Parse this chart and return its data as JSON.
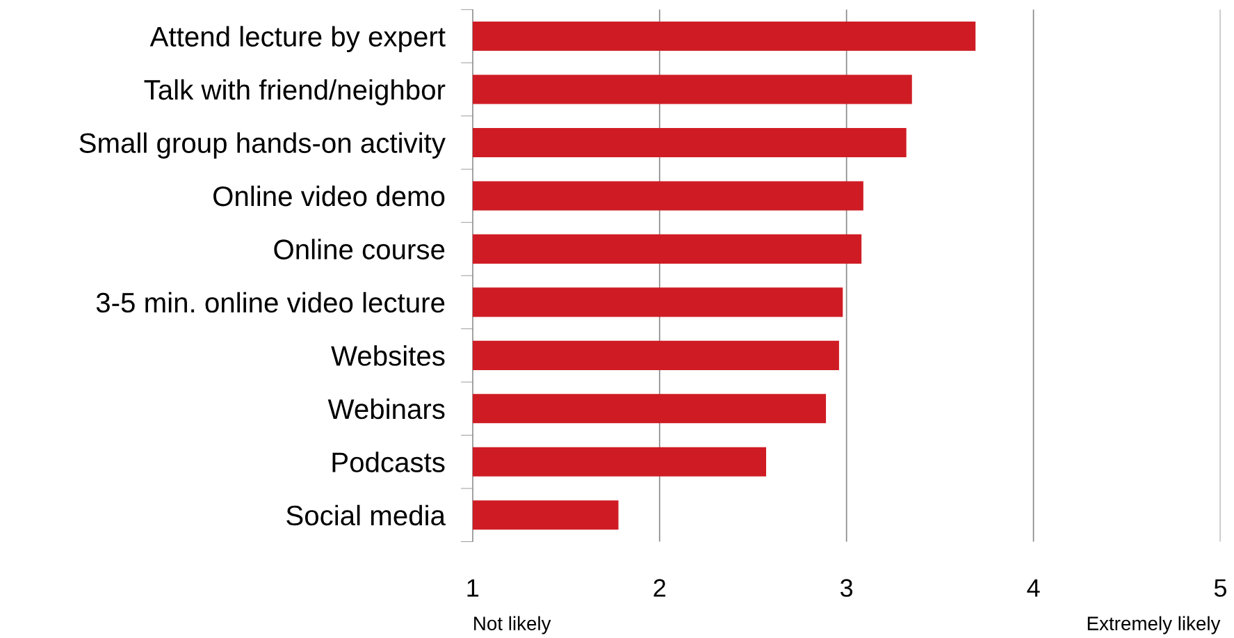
{
  "chart_data": {
    "type": "bar",
    "orientation": "horizontal",
    "categories": [
      "Attend lecture by expert",
      "Talk with friend/neighbor",
      "Small group hands-on activity",
      "Online video demo",
      "Online course",
      "3-5 min. online video lecture",
      "Websites",
      "Webinars",
      "Podcasts",
      "Social media"
    ],
    "base": [
      1,
      1,
      1,
      1,
      1,
      1,
      1,
      1,
      1,
      1
    ],
    "values": [
      2.69,
      2.35,
      2.32,
      2.09,
      2.08,
      1.98,
      1.96,
      1.89,
      1.57,
      0.78
    ],
    "color": "#cf1c24",
    "xlim": [
      1,
      5
    ],
    "xticks": [
      1,
      2,
      3,
      4,
      5
    ],
    "grid": "x",
    "legend": false,
    "annotations": [
      "Not likely",
      "Extremely likely"
    ]
  }
}
